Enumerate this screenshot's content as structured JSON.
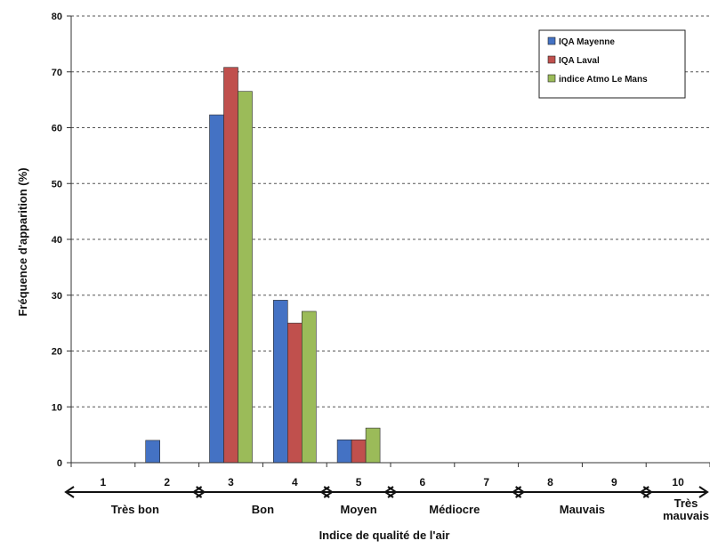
{
  "chart_data": {
    "type": "bar",
    "xlabel": "Indice de qualité de l'air",
    "ylabel": "Fréquence d'apparition (%)",
    "ylim": [
      0,
      80
    ],
    "yticks": [
      0,
      10,
      20,
      30,
      40,
      50,
      60,
      70,
      80
    ],
    "grid": "horizontal dashed",
    "legend_position": "top-right",
    "categories": [
      "1",
      "2",
      "3",
      "4",
      "5",
      "6",
      "7",
      "8",
      "9",
      "10"
    ],
    "series": [
      {
        "name": "IQA Mayenne",
        "color": "#4472c4",
        "values": [
          0,
          4,
          62.3,
          29.1,
          4.1,
          0,
          0,
          0,
          0,
          0
        ]
      },
      {
        "name": "IQA Laval",
        "color": "#c0504d",
        "values": [
          0,
          0,
          70.8,
          25,
          4.1,
          0,
          0,
          0,
          0,
          0
        ]
      },
      {
        "name": "indice Atmo Le Mans",
        "color": "#9bbb59",
        "values": [
          0,
          0,
          66.5,
          27.1,
          6.2,
          0,
          0,
          0,
          0,
          0
        ]
      }
    ],
    "groups": [
      {
        "label": "Très bon",
        "from": 1,
        "to": 2
      },
      {
        "label": "Bon",
        "from": 3,
        "to": 4
      },
      {
        "label": "Moyen",
        "from": 5,
        "to": 5
      },
      {
        "label": "Médiocre",
        "from": 6,
        "to": 7
      },
      {
        "label": "Mauvais",
        "from": 8,
        "to": 9
      },
      {
        "label": "Très mauvais",
        "from": 10,
        "to": 10
      }
    ]
  }
}
